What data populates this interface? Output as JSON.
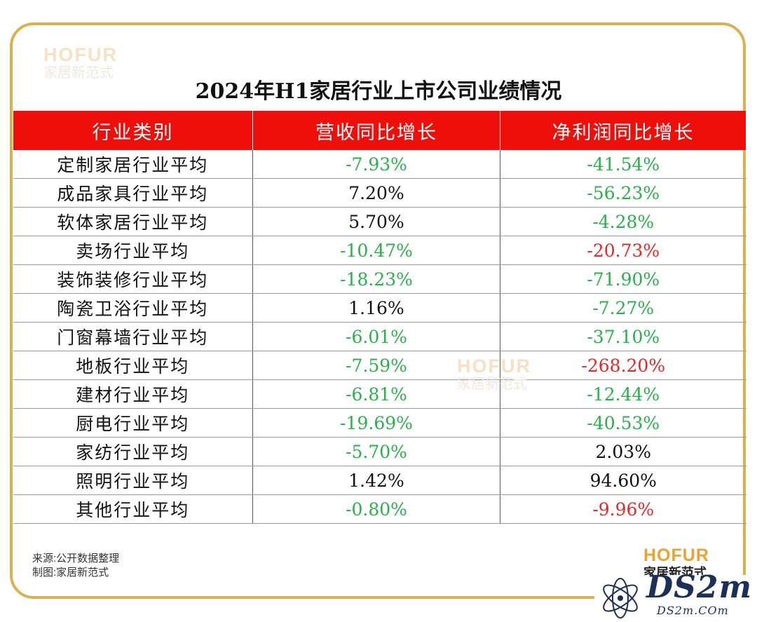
{
  "watermark": {
    "brand": "HOFUR",
    "sub": "家居新范式"
  },
  "title": "2024年H1家居行业上市公司业绩情况",
  "columns": [
    "行业类别",
    "营收同比增长",
    "净利润同比增长"
  ],
  "rows": [
    {
      "category": "定制家居行业平均",
      "revenue": "-7.93%",
      "revenue_color": "#27b24a",
      "profit": "-41.54%",
      "profit_color": "#27b24a"
    },
    {
      "category": "成品家具行业平均",
      "revenue": "7.20%",
      "revenue_color": "#111111",
      "profit": "-56.23%",
      "profit_color": "#27b24a"
    },
    {
      "category": "软体家居行业平均",
      "revenue": "5.70%",
      "revenue_color": "#111111",
      "profit": "-4.28%",
      "profit_color": "#27b24a"
    },
    {
      "category": "卖场行业平均",
      "revenue": "-10.47%",
      "revenue_color": "#27b24a",
      "profit": "-20.73%",
      "profit_color": "#ef2424"
    },
    {
      "category": "装饰装修行业平均",
      "revenue": "-18.23%",
      "revenue_color": "#27b24a",
      "profit": "-71.90%",
      "profit_color": "#27b24a"
    },
    {
      "category": "陶瓷卫浴行业平均",
      "revenue": "1.16%",
      "revenue_color": "#111111",
      "profit": "-7.27%",
      "profit_color": "#27b24a"
    },
    {
      "category": "门窗幕墙行业平均",
      "revenue": "-6.01%",
      "revenue_color": "#27b24a",
      "profit": "-37.10%",
      "profit_color": "#27b24a"
    },
    {
      "category": "地板行业平均",
      "revenue": "-7.59%",
      "revenue_color": "#27b24a",
      "profit": "-268.20%",
      "profit_color": "#ef2424"
    },
    {
      "category": "建材行业平均",
      "revenue": "-6.81%",
      "revenue_color": "#27b24a",
      "profit": "-12.44%",
      "profit_color": "#27b24a"
    },
    {
      "category": "厨电行业平均",
      "revenue": "-19.69%",
      "revenue_color": "#27b24a",
      "profit": "-40.53%",
      "profit_color": "#27b24a"
    },
    {
      "category": "家纺行业平均",
      "revenue": "-5.70%",
      "revenue_color": "#27b24a",
      "profit": "2.03%",
      "profit_color": "#111111"
    },
    {
      "category": "照明行业平均",
      "revenue": "1.42%",
      "revenue_color": "#111111",
      "profit": "94.60%",
      "profit_color": "#111111"
    },
    {
      "category": "其他行业平均",
      "revenue": "-0.80%",
      "revenue_color": "#27b24a",
      "profit": "-9.96%",
      "profit_color": "#ef2424"
    }
  ],
  "source": [
    "来源:公开数据整理",
    "制图:家居新范式"
  ],
  "logo": {
    "brand": "HOFUR",
    "sub": "家居新范式"
  },
  "ds2m": {
    "name": "DS2m",
    "url": "DS2m.COm",
    "icon": "atom-icon"
  },
  "colors": {
    "header_bg": "#ee0f0a",
    "border": "#d8b24f",
    "green": "#27b24a",
    "red": "#ef2424"
  },
  "chart_data": {
    "type": "table",
    "title": "2024年H1家居行业上市公司业绩情况",
    "columns": [
      "行业类别",
      "营收同比增长",
      "净利润同比增长"
    ],
    "rows": [
      [
        "定制家居行业平均",
        -7.93,
        -41.54
      ],
      [
        "成品家具行业平均",
        7.2,
        -56.23
      ],
      [
        "软体家居行业平均",
        5.7,
        -4.28
      ],
      [
        "卖场行业平均",
        -10.47,
        -20.73
      ],
      [
        "装饰装修行业平均",
        -18.23,
        -71.9
      ],
      [
        "陶瓷卫浴行业平均",
        1.16,
        -7.27
      ],
      [
        "门窗幕墙行业平均",
        -6.01,
        -37.1
      ],
      [
        "地板行业平均",
        -7.59,
        -268.2
      ],
      [
        "建材行业平均",
        -6.81,
        -12.44
      ],
      [
        "厨电行业平均",
        -19.69,
        -40.53
      ],
      [
        "家纺行业平均",
        -5.7,
        2.03
      ],
      [
        "照明行业平均",
        1.42,
        94.6
      ],
      [
        "其他行业平均",
        -0.8,
        -9.96
      ]
    ]
  }
}
